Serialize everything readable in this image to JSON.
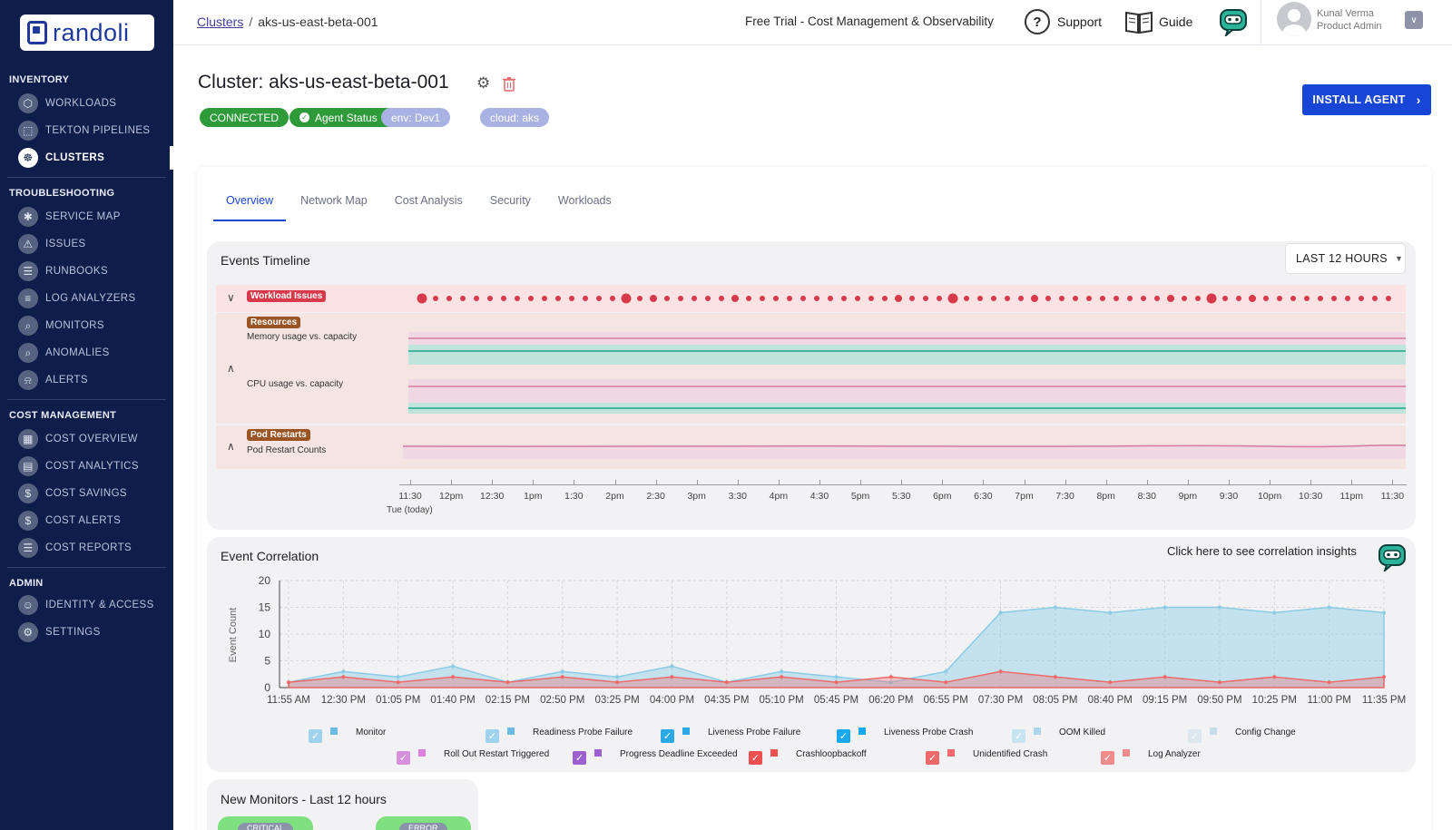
{
  "sidebar": {
    "logo_text": "randoli",
    "sections": [
      {
        "title": "INVENTORY",
        "items": [
          "WORKLOADS",
          "TEKTON PIPELINES",
          "CLUSTERS"
        ]
      },
      {
        "title": "TROUBLESHOOTING",
        "items": [
          "SERVICE MAP",
          "ISSUES",
          "RUNBOOKS",
          "LOG ANALYZERS",
          "MONITORS",
          "ANOMALIES",
          "ALERTS"
        ]
      },
      {
        "title": "COST MANAGEMENT",
        "items": [
          "COST OVERVIEW",
          "COST ANALYTICS",
          "COST SAVINGS",
          "COST ALERTS",
          "COST REPORTS"
        ]
      },
      {
        "title": "ADMIN",
        "items": [
          "IDENTITY & ACCESS",
          "SETTINGS"
        ]
      }
    ],
    "active_item": "CLUSTERS"
  },
  "topbar": {
    "breadcrumb_link": "Clusters",
    "breadcrumb_sep": "/",
    "breadcrumb_current": "aks-us-east-beta-001",
    "trial_text": "Free Trial - Cost Management & Observability",
    "support_label": "Support",
    "guide_label": "Guide",
    "user_name": "Kunal Verma",
    "user_role": "Product Admin"
  },
  "header": {
    "title": "Cluster: aks-us-east-beta-001",
    "tags": {
      "connected": "CONNECTED",
      "agent": "Agent Status",
      "env": "env: Dev1",
      "cloud": "cloud: aks"
    },
    "install_label": "INSTALL AGENT"
  },
  "tabs": [
    "Overview",
    "Network Map",
    "Cost Analysis",
    "Security",
    "Workloads"
  ],
  "timeline": {
    "title": "Events Timeline",
    "range": "LAST 12 HOURS",
    "workload_label": "Workload Issues",
    "resources_label": "Resources",
    "memory_label": "Memory usage vs. capacity",
    "cpu_label": "CPU usage vs. capacity",
    "pod_label": "Pod Restarts",
    "pod_sub": "Pod Restart Counts",
    "ticks": [
      "11:30",
      "12pm",
      "12:30",
      "1pm",
      "1:30",
      "2pm",
      "2:30",
      "3pm",
      "3:30",
      "4pm",
      "4:30",
      "5pm",
      "5:30",
      "6pm",
      "6:30",
      "7pm",
      "7:30",
      "8pm",
      "8:30",
      "9pm",
      "9:30",
      "10pm",
      "10:30",
      "11pm",
      "11:30"
    ],
    "today_label": "Tue (today)"
  },
  "correlation": {
    "title": "Event Correlation",
    "insight_link": "Click here to see correlation insights",
    "legend": [
      {
        "label": "Monitor",
        "color": "#6cbbe3",
        "check": "#9fd2ec"
      },
      {
        "label": "Readiness Probe Failure",
        "color": "#6cbbe3",
        "check": "#9fd2ec"
      },
      {
        "label": "Liveness Probe Failure",
        "color": "#2aa9e4",
        "check": "#2aa9e4"
      },
      {
        "label": "Liveness Probe Crash",
        "color": "#19a9f0",
        "check": "#19a9f0"
      },
      {
        "label": "OOM Killed",
        "color": "#a9d6ea",
        "check": "#c6e3f0"
      },
      {
        "label": "Config Change",
        "color": "#c9dde7",
        "check": "#dce8ee"
      },
      {
        "label": "Roll Out Restart Triggered",
        "color": "#dd7fe2",
        "check": "#d690dc"
      },
      {
        "label": "Progress Deadline Exceeded",
        "color": "#9d5fd0",
        "check": "#9d5fd0"
      },
      {
        "label": "Crashloopbackoff",
        "color": "#ee4f4f",
        "check": "#ee4f4f"
      },
      {
        "label": "Unidentified Crash",
        "color": "#ee6a6a",
        "check": "#ee6a6a"
      },
      {
        "label": "Log Analyzer",
        "color": "#f28b8b",
        "check": "#f28b8b"
      }
    ]
  },
  "chart_data": {
    "type": "area",
    "title": "Event Correlation",
    "ylabel": "Event Count",
    "xlabel": "",
    "ylim": [
      0,
      20
    ],
    "yticks": [
      0,
      5,
      10,
      15,
      20
    ],
    "x": [
      "11:55 AM",
      "12:30 PM",
      "01:05 PM",
      "01:40 PM",
      "02:15 PM",
      "02:50 PM",
      "03:25 PM",
      "04:00 PM",
      "04:35 PM",
      "05:10 PM",
      "05:45 PM",
      "06:20 PM",
      "06:55 PM",
      "07:30 PM",
      "08:05 PM",
      "08:40 PM",
      "09:15 PM",
      "09:50 PM",
      "10:25 PM",
      "11:00 PM",
      "11:35 PM"
    ],
    "series": [
      {
        "name": "Monitor",
        "values": [
          1,
          3,
          2,
          4,
          1,
          3,
          2,
          4,
          1,
          3,
          2,
          1,
          3,
          14,
          15,
          14,
          15,
          15,
          14,
          15,
          14
        ]
      },
      {
        "name": "Crashloopbackoff",
        "values": [
          1,
          2,
          1,
          2,
          1,
          2,
          1,
          2,
          1,
          2,
          1,
          2,
          1,
          3,
          2,
          1,
          2,
          1,
          2,
          1,
          2
        ]
      }
    ]
  },
  "monitors": {
    "title": "New Monitors - Last 12 hours",
    "critical": "CRITICAL",
    "error": "ERROR"
  }
}
